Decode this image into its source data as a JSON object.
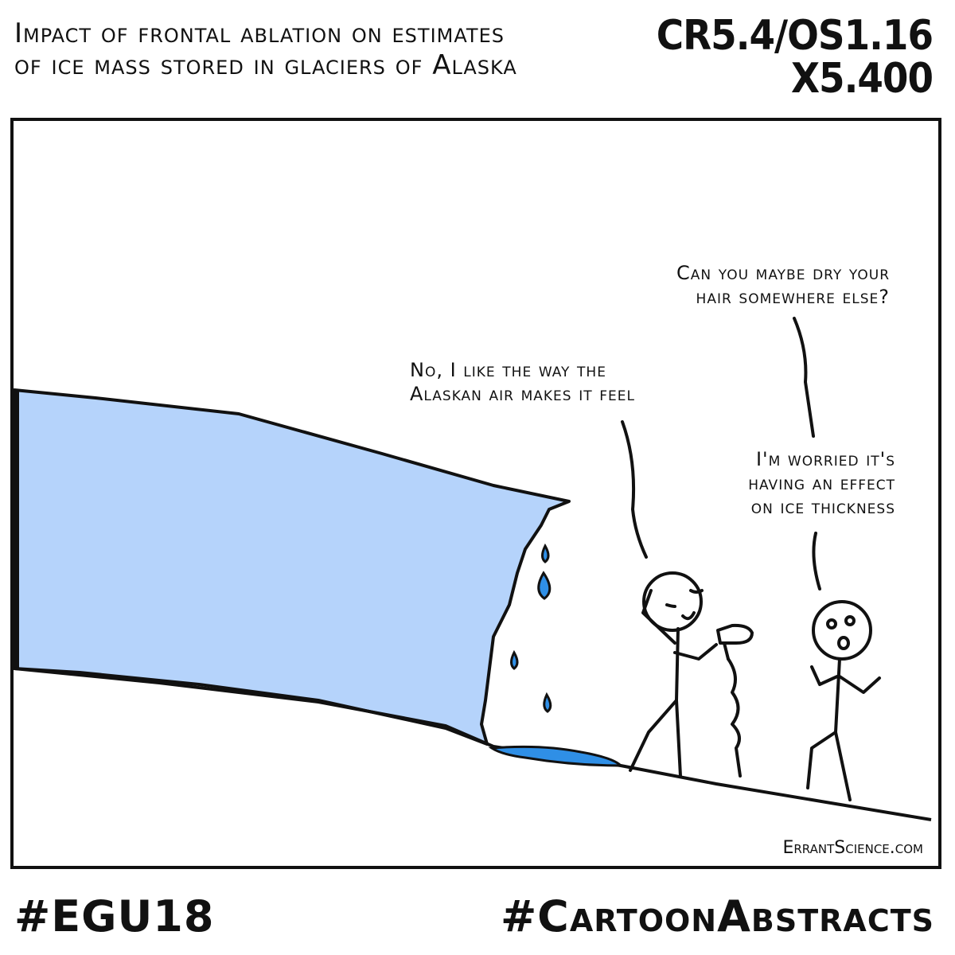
{
  "title": "Impact of frontal ablation on estimates of ice mass stored in glaciers of Alaska",
  "session_code": [
    "CR5.4/OS1.16",
    "X5.400"
  ],
  "speech": {
    "line1": [
      "Can you maybe dry your",
      "hair somewhere else?"
    ],
    "line2": [
      "No, I like the way the",
      "Alaskan air makes it feel"
    ],
    "line3": [
      "I'm worried it's",
      "having an effect",
      "on ice thickness"
    ]
  },
  "credit": "ErrantScience.com",
  "hashtags": {
    "left": "#EGU18",
    "right": "#CartoonAbstracts"
  },
  "colors": {
    "glacier": "#b5d3fb",
    "meltwater": "#2f8fe6",
    "ink": "#111111"
  }
}
